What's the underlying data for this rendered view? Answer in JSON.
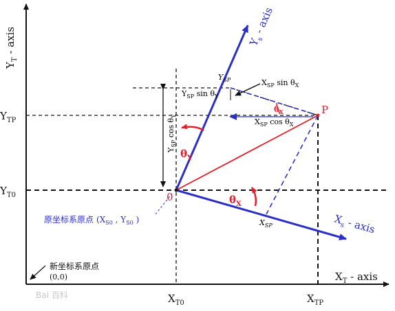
{
  "axes": {
    "x_axis_label": {
      "main": "X",
      "sub": "T",
      "rest": " - axis"
    },
    "y_axis_label": {
      "main": "Y",
      "sub": "T",
      "rest": " - axis"
    },
    "ys_axis_label": "Y",
    "ys_axis_sub": "s",
    "ys_axis_rest": " - axis",
    "xs_axis_label": "X",
    "xs_axis_sub": "s",
    "xs_axis_rest": " - axis"
  },
  "ticks": {
    "ytp": {
      "main": "Y",
      "sub": "TP"
    },
    "yt0": {
      "main": "Y",
      "sub": "T0"
    },
    "xt0": {
      "main": "X",
      "sub": "T0"
    },
    "xtp": {
      "main": "X",
      "sub": "TP"
    }
  },
  "points": {
    "origin_label": "0",
    "p_label": "P",
    "ysp_main": "Y",
    "ysp_sub": "SP",
    "xsp_main": "X",
    "xsp_sub": "SP"
  },
  "annotations": {
    "ysp_sin": {
      "a": "Y",
      "b": "SP",
      "c": " sin θ",
      "d": "Y"
    },
    "xsp_sin": {
      "a": "X",
      "b": "SP",
      "c": " sin θ",
      "d": "X"
    },
    "xsp_cos": {
      "a": "X",
      "b": "SP",
      "c": " cos θ",
      "d": "X"
    },
    "ysp_cos": {
      "a": "Y",
      "b": "SP",
      "c": " cos θ",
      "d": "Y"
    },
    "theta_x_small": {
      "a": "θ",
      "b": "X"
    },
    "theta_y": {
      "a": "θ",
      "b": "Y"
    },
    "theta_x": {
      "a": "θ",
      "b": "X"
    }
  },
  "origin_notes": {
    "old_origin": "原坐标系原点",
    "old_origin_coords": "(X",
    "old_origin_s0a": "S0",
    "old_origin_mid": " , Y",
    "old_origin_s0b": "S0",
    "old_origin_end": " )",
    "new_origin": "新坐标系原点",
    "new_origin_coords": "(0,0)"
  },
  "watermark": "Bai 百科",
  "colors": {
    "blue": "#2b2fc2",
    "red": "#e0202a",
    "black": "#111111"
  }
}
